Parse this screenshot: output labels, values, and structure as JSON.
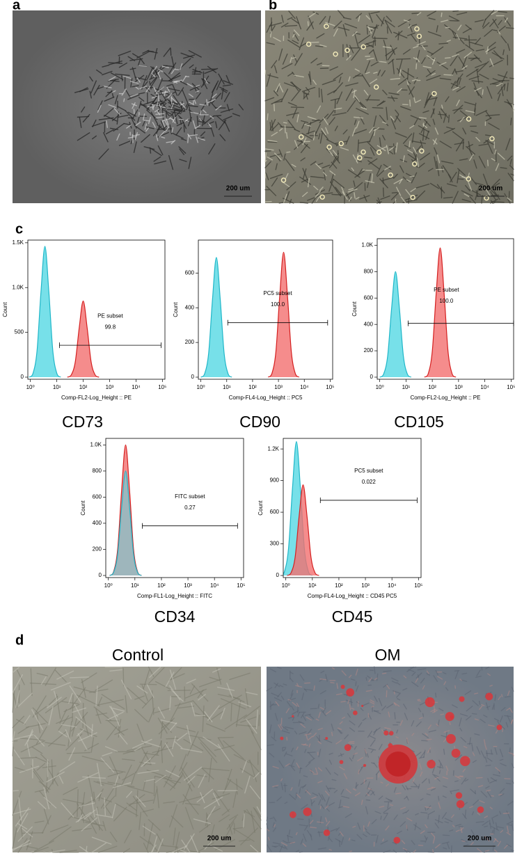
{
  "panels": {
    "a": {
      "letter": "a",
      "scale_bar": "200 um"
    },
    "b": {
      "letter": "b",
      "scale_bar": "200 um"
    },
    "c": {
      "letter": "c"
    },
    "d": {
      "letter": "d",
      "control": {
        "title": "Control",
        "scale_bar": "200 um"
      },
      "om": {
        "title": "OM",
        "scale_bar": "200 um"
      }
    }
  },
  "chart_data": [
    {
      "type": "histogram",
      "title": "CD73",
      "x_label": "Comp-FL2-Log_Height :: PE",
      "y_label": "Count",
      "xscale": "log",
      "xlim": [
        0.8,
        125000
      ],
      "ylim": [
        0,
        1530
      ],
      "xticks": [
        {
          "value": 1,
          "label": "10⁰"
        },
        {
          "value": 10,
          "label": "10¹"
        },
        {
          "value": 100,
          "label": "10²"
        },
        {
          "value": 1000,
          "label": "10³"
        },
        {
          "value": 10000,
          "label": "10⁴"
        },
        {
          "value": 100000,
          "label": "10⁵"
        }
      ],
      "yticks": [
        0,
        500,
        {
          "value": 1000,
          "label": "1.0K"
        },
        {
          "value": 1500,
          "label": "1.5K"
        }
      ],
      "gate": {
        "name": "PE subset",
        "value": 99.8,
        "xrange": [
          12.6,
          89000
        ],
        "y": 356
      },
      "series": [
        {
          "color": "#55d8e4",
          "x": [
            0.89,
            1.26,
            1.78,
            2.51,
            3.55,
            5.01,
            7.08,
            10,
            14.1
          ],
          "values": [
            0,
            44,
            292,
            949,
            1460,
            949,
            292,
            44,
            0
          ]
        },
        {
          "color": "#f26f6f",
          "x": [
            25.1,
            35.5,
            50.1,
            70.8,
            100,
            141,
            200,
            282,
            398
          ],
          "values": [
            0,
            26,
            170,
            553,
            850,
            553,
            170,
            26,
            0
          ]
        }
      ]
    },
    {
      "type": "histogram",
      "title": "CD90",
      "x_label": "Comp-FL4-Log_Height :: PC5",
      "y_label": "Count",
      "xscale": "log",
      "xlim": [
        0.8,
        125000
      ],
      "ylim": [
        0,
        790
      ],
      "xticks": [
        {
          "value": 1,
          "label": "10⁰"
        },
        {
          "value": 10,
          "label": "10¹"
        },
        {
          "value": 100,
          "label": "10²"
        },
        {
          "value": 1000,
          "label": "10³"
        },
        {
          "value": 10000,
          "label": "10⁴"
        },
        {
          "value": 100000,
          "label": "10⁵"
        }
      ],
      "yticks": [
        0,
        200,
        400,
        600
      ],
      "gate": {
        "name": "PC5 subset",
        "value": 100,
        "value_label": "100.0",
        "xrange": [
          11,
          80000
        ],
        "y": 314
      },
      "series": [
        {
          "color": "#55d8e4",
          "x": [
            1,
            1.41,
            2,
            2.82,
            3.98,
            5.62,
            7.94,
            11.2,
            15.8
          ],
          "values": [
            0,
            21,
            138,
            449,
            690,
            449,
            138,
            21,
            0
          ]
        },
        {
          "color": "#f26f6f",
          "x": [
            398,
            562,
            794,
            1122,
            1585,
            2239,
            3162,
            4467,
            6310
          ],
          "values": [
            0,
            22,
            144,
            468,
            720,
            468,
            144,
            22,
            0
          ]
        }
      ]
    },
    {
      "type": "histogram",
      "title": "CD105",
      "x_label": "Comp-FL2-Log_Height :: PE",
      "y_label": "Count",
      "xscale": "log",
      "xlim": [
        0.8,
        125000
      ],
      "ylim": [
        0,
        1050
      ],
      "xticks": [
        {
          "value": 1,
          "label": "10⁰"
        },
        {
          "value": 10,
          "label": "10¹"
        },
        {
          "value": 100,
          "label": "10²"
        },
        {
          "value": 1000,
          "label": "10³"
        },
        {
          "value": 10000,
          "label": "10⁴"
        },
        {
          "value": 100000,
          "label": "10⁵"
        }
      ],
      "yticks": [
        0,
        200,
        400,
        600,
        800,
        {
          "value": 1000,
          "label": "1.0K"
        }
      ],
      "gate": {
        "name": "PE subset",
        "value": 100,
        "value_label": "100.0",
        "xrange": [
          12,
          125000
        ],
        "y": 408
      },
      "series": [
        {
          "color": "#55d8e4",
          "x": [
            1,
            1.41,
            2,
            2.82,
            3.98,
            5.62,
            7.94,
            11.2,
            15.8
          ],
          "values": [
            0,
            24,
            160,
            520,
            800,
            520,
            160,
            24,
            0
          ]
        },
        {
          "color": "#f26f6f",
          "x": [
            50.1,
            70.8,
            100,
            141,
            200,
            282,
            398,
            562,
            794
          ],
          "values": [
            0,
            29,
            196,
            637,
            980,
            637,
            196,
            29,
            0
          ]
        }
      ]
    },
    {
      "type": "histogram",
      "title": "CD34",
      "x_label": "Comp-FL1-Log_Height :: FITC",
      "y_label": "Count",
      "xscale": "log",
      "xlim": [
        0.8,
        125000
      ],
      "ylim": [
        0,
        1050
      ],
      "xticks": [
        {
          "value": 1,
          "label": "10⁰"
        },
        {
          "value": 10,
          "label": "10¹"
        },
        {
          "value": 100,
          "label": "10²"
        },
        {
          "value": 1000,
          "label": "10³"
        },
        {
          "value": 10000,
          "label": "10⁴"
        },
        {
          "value": 100000,
          "label": "10⁵"
        }
      ],
      "yticks": [
        0,
        200,
        400,
        600,
        800,
        {
          "value": 1000,
          "label": "1.0K"
        }
      ],
      "gate": {
        "name": "FITC subset",
        "value": 0.27,
        "xrange": [
          19,
          74000
        ],
        "y": 380
      },
      "series": [
        {
          "color": "#f26f6f",
          "x": [
            1.12,
            1.58,
            2.24,
            3.16,
            4.47,
            6.31,
            8.91,
            12.6,
            17.8
          ],
          "values": [
            0,
            30,
            200,
            650,
            1000,
            650,
            200,
            30,
            0
          ]
        },
        {
          "color": "#55d8e4",
          "x": [
            1.12,
            1.58,
            2.24,
            3.16,
            4.47,
            6.31,
            8.91,
            12.6,
            17.8
          ],
          "values": [
            0,
            24,
            160,
            520,
            800,
            520,
            160,
            24,
            0
          ]
        }
      ]
    },
    {
      "type": "histogram",
      "title": "CD45",
      "x_label": "Comp-FL4-Log_Height :: CD45 PC5",
      "y_label": "Count",
      "xscale": "log",
      "xlim": [
        0.8,
        125000
      ],
      "ylim": [
        0,
        1300
      ],
      "xticks": [
        {
          "value": 1,
          "label": "10⁰"
        },
        {
          "value": 10,
          "label": "10¹"
        },
        {
          "value": 100,
          "label": "10²"
        },
        {
          "value": 1000,
          "label": "10³"
        },
        {
          "value": 10000,
          "label": "10⁴"
        },
        {
          "value": 100000,
          "label": "10⁵"
        }
      ],
      "yticks": [
        0,
        300,
        600,
        900,
        {
          "value": 1200,
          "label": "1.2K"
        }
      ],
      "gate": {
        "name": "PC5 subset",
        "value": 0.022,
        "xrange": [
          20,
          89000
        ],
        "y": 713
      },
      "series": [
        {
          "color": "#55d8e4",
          "x": [
            0.63,
            0.89,
            1.26,
            1.78,
            2.51,
            3.55,
            5.01,
            7.08,
            10
          ],
          "values": [
            0,
            38,
            254,
            826,
            1270,
            826,
            254,
            38,
            0
          ]
        },
        {
          "color": "#f26f6f",
          "x": [
            1.12,
            1.58,
            2.24,
            3.16,
            4.47,
            6.31,
            8.91,
            12.6,
            17.8
          ],
          "values": [
            0,
            26,
            172,
            559,
            860,
            559,
            172,
            26,
            0
          ]
        }
      ]
    }
  ]
}
